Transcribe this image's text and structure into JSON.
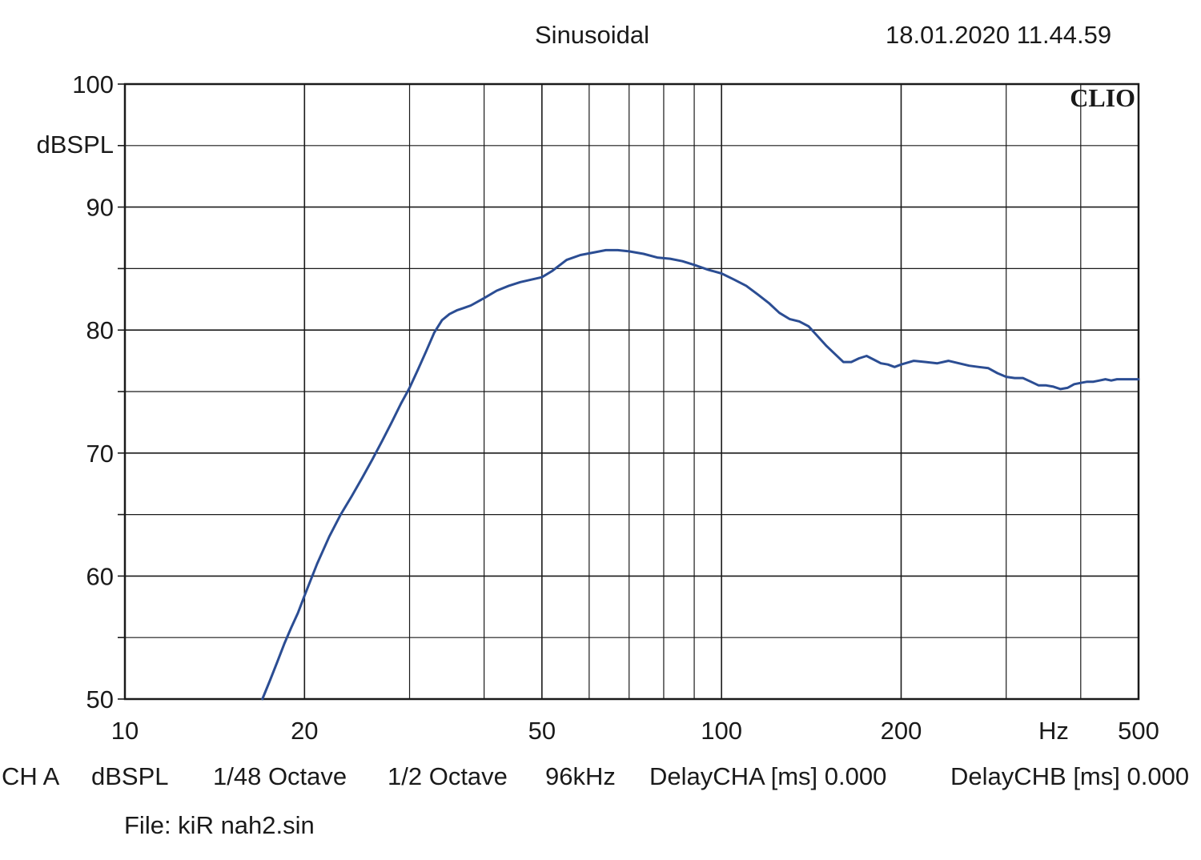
{
  "header": {
    "title": "Sinusoidal",
    "datetime": "18.01.2020 11.44.59"
  },
  "info": {
    "channel": "CH A",
    "unit": "dBSPL",
    "resolution": "1/48 Octave",
    "smoothing": "1/2 Octave",
    "sample_rate": "96kHz",
    "delay_a": "DelayCHA [ms] 0.000",
    "delay_b": "DelayCHB [ms] 0.000",
    "file": "File: kiR nah2.sin"
  },
  "chart_data": {
    "type": "line",
    "title": "Sinusoidal",
    "ylabel": "dBSPL",
    "xlabel": "Hz",
    "watermark": "CLIO",
    "xscale": "log",
    "xlim": [
      10,
      500
    ],
    "ylim": [
      50,
      100
    ],
    "grid": true,
    "x_ticks": [
      "10",
      "20",
      "50",
      "100",
      "200",
      "500"
    ],
    "x_tick_values": [
      10,
      20,
      50,
      100,
      200,
      500
    ],
    "y_ticks": [
      "50",
      "60",
      "70",
      "80",
      "90",
      "100"
    ],
    "y_tick_values": [
      50,
      60,
      70,
      80,
      90,
      100
    ],
    "line_color": "#2b4d93",
    "series": [
      {
        "x": [
          17,
          17.5,
          18,
          18.5,
          19,
          19.5,
          20,
          21,
          22,
          23,
          24,
          25,
          26,
          27,
          28,
          29,
          30,
          31,
          32,
          33,
          34,
          35,
          36,
          37,
          38,
          40,
          42,
          44,
          46,
          48,
          50,
          52,
          55,
          58,
          61,
          64,
          67,
          70,
          74,
          78,
          82,
          86,
          90,
          95,
          100,
          105,
          110,
          115,
          120,
          125,
          130,
          135,
          140,
          150,
          160,
          165,
          170,
          175,
          180,
          185,
          190,
          195,
          200,
          210,
          220,
          230,
          240,
          250,
          260,
          270,
          280,
          290,
          300,
          310,
          320,
          330,
          340,
          350,
          360,
          370,
          380,
          390,
          400,
          410,
          420,
          430,
          440,
          450,
          460,
          470,
          480,
          490,
          500
        ],
        "y": [
          50,
          51.5,
          53,
          54.5,
          55.8,
          57,
          58.4,
          61,
          63.2,
          65,
          66.5,
          68,
          69.5,
          71,
          72.5,
          74,
          75.3,
          76.8,
          78.3,
          79.8,
          80.8,
          81.3,
          81.6,
          81.8,
          82,
          82.6,
          83.2,
          83.6,
          83.9,
          84.1,
          84.3,
          84.8,
          85.7,
          86.1,
          86.3,
          86.5,
          86.5,
          86.4,
          86.2,
          85.9,
          85.8,
          85.6,
          85.3,
          84.9,
          84.6,
          84.1,
          83.6,
          82.9,
          82.2,
          81.4,
          80.9,
          80.7,
          80.3,
          78.7,
          77.4,
          77.4,
          77.7,
          77.9,
          77.6,
          77.3,
          77.2,
          77,
          77.2,
          77.5,
          77.4,
          77.3,
          77.5,
          77.3,
          77.1,
          77,
          76.9,
          76.5,
          76.2,
          76.1,
          76.1,
          75.8,
          75.5,
          75.5,
          75.4,
          75.2,
          75.3,
          75.6,
          75.7,
          75.8,
          75.8,
          75.9,
          76,
          75.9,
          76,
          76,
          76,
          76,
          76
        ]
      }
    ]
  }
}
